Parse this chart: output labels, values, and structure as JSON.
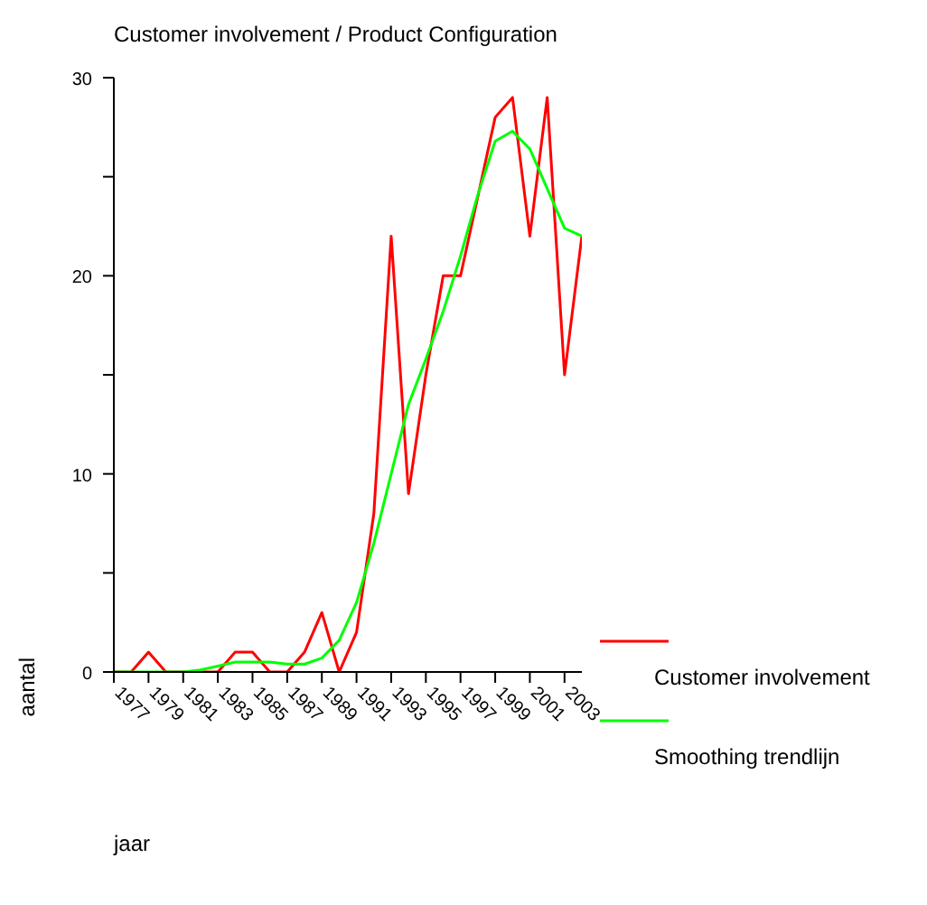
{
  "chart_data": {
    "type": "line",
    "title": "Customer involvement / Product Configuration",
    "xlabel": "jaar",
    "ylabel": "aantal",
    "x": [
      1977,
      1978,
      1979,
      1980,
      1981,
      1982,
      1983,
      1984,
      1985,
      1986,
      1987,
      1988,
      1989,
      1990,
      1991,
      1992,
      1993,
      1994,
      1995,
      1996,
      1997,
      1998,
      1999,
      2000,
      2001,
      2002,
      2003,
      2004
    ],
    "series": [
      {
        "name": "Customer involvement",
        "color": "#ff0000",
        "values": [
          0,
          0,
          1,
          0,
          0,
          0,
          0,
          1,
          1,
          0,
          0,
          1,
          3,
          0,
          2,
          8,
          22,
          9,
          15,
          20,
          20,
          24,
          28,
          29,
          22,
          29,
          15,
          22
        ]
      },
      {
        "name": "Smoothing trendlijn",
        "color": "#00ff00",
        "values": [
          0,
          0,
          0,
          0,
          0,
          0.1,
          0.3,
          0.5,
          0.5,
          0.5,
          0.4,
          0.4,
          0.7,
          1.6,
          3.5,
          6.5,
          10,
          13.5,
          15.8,
          18.2,
          21,
          24.1,
          26.8,
          27.3,
          26.4,
          24.4,
          22.4,
          22
        ]
      }
    ],
    "xlim": [
      1977,
      2004
    ],
    "xticks": [
      1977,
      1979,
      1981,
      1983,
      1985,
      1987,
      1989,
      1991,
      1993,
      1995,
      1997,
      1999,
      2001,
      2003
    ],
    "ylim": [
      0,
      30
    ],
    "yticks": [
      0,
      {
        "value": 5,
        "label": null
      },
      10,
      {
        "value": 15,
        "label": null
      },
      20,
      {
        "value": 25,
        "label": null
      },
      30
    ],
    "legend": "right",
    "marker": "none",
    "line_style": "solid"
  }
}
